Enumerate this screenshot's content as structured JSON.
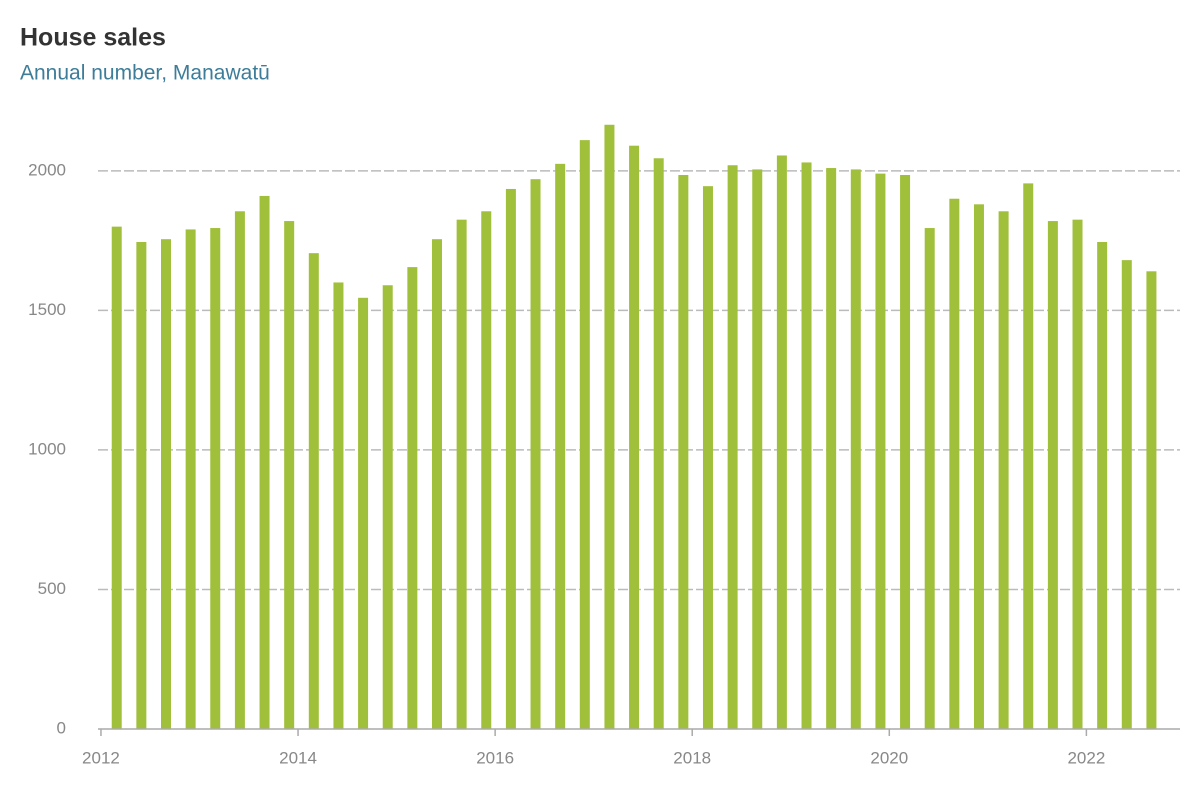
{
  "chart_data": {
    "type": "bar",
    "title": "House sales",
    "subtitle": "Annual number, Manawatū",
    "x": [
      2012.16,
      2012.41,
      2012.66,
      2012.91,
      2013.16,
      2013.41,
      2013.66,
      2013.91,
      2014.16,
      2014.41,
      2014.66,
      2014.91,
      2015.16,
      2015.41,
      2015.66,
      2015.91,
      2016.16,
      2016.41,
      2016.66,
      2016.91,
      2017.16,
      2017.41,
      2017.66,
      2017.91,
      2018.16,
      2018.41,
      2018.66,
      2018.91,
      2019.16,
      2019.41,
      2019.66,
      2019.91,
      2020.16,
      2020.41,
      2020.66,
      2020.91,
      2021.16,
      2021.41,
      2021.66,
      2021.91,
      2022.16,
      2022.41,
      2022.66
    ],
    "values": [
      1800,
      1745,
      1755,
      1790,
      1795,
      1855,
      1910,
      1820,
      1705,
      1600,
      1545,
      1590,
      1655,
      1755,
      1825,
      1855,
      1935,
      1970,
      2025,
      2110,
      2165,
      2090,
      2045,
      1985,
      1945,
      2020,
      2005,
      2055,
      2030,
      2010,
      2005,
      1990,
      1985,
      1795,
      1900,
      1880,
      1855,
      1955,
      1820,
      1825,
      1745,
      1680,
      1640
    ],
    "color": "#a0c03b",
    "xlim": [
      2011.97,
      2022.95
    ],
    "xticks": [
      2012,
      2014,
      2016,
      2018,
      2020,
      2022
    ],
    "ylim": [
      0,
      2200
    ],
    "yticks": [
      0,
      500,
      1000,
      1500,
      2000
    ],
    "grid": true
  }
}
